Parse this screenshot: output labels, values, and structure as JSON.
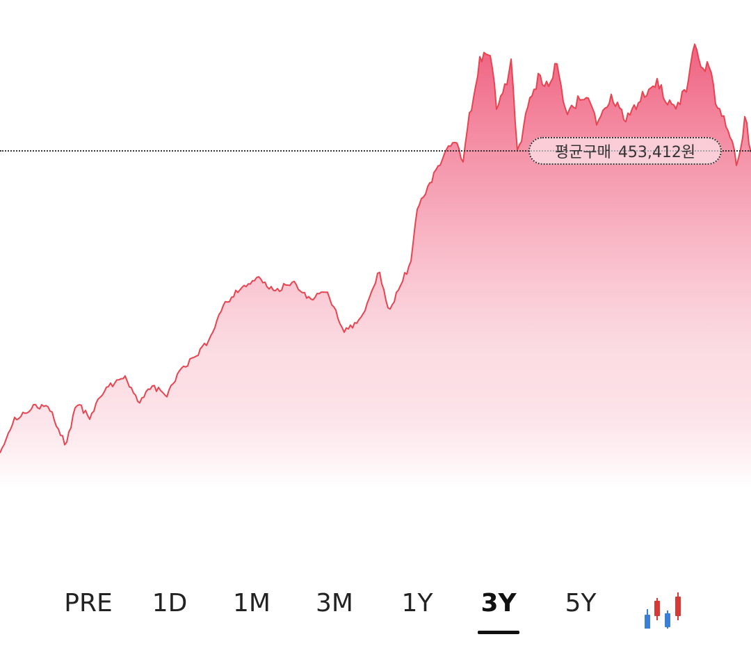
{
  "chart": {
    "average_label": "평균구매",
    "average_value": "453,412원",
    "line_color": "#e8434f",
    "fill_top_color": "#ef5f7d",
    "fill_bottom_color": "#ffffff"
  },
  "ranges": {
    "tabs": [
      {
        "label": "PRE"
      },
      {
        "label": "1D"
      },
      {
        "label": "1M"
      },
      {
        "label": "3M"
      },
      {
        "label": "1Y"
      },
      {
        "label": "3Y"
      },
      {
        "label": "5Y"
      }
    ],
    "selected": "3Y",
    "chart_type_icon": "candlestick-icon",
    "candle_colors": {
      "up": "#d63a36",
      "down": "#3a7fd5"
    }
  }
}
